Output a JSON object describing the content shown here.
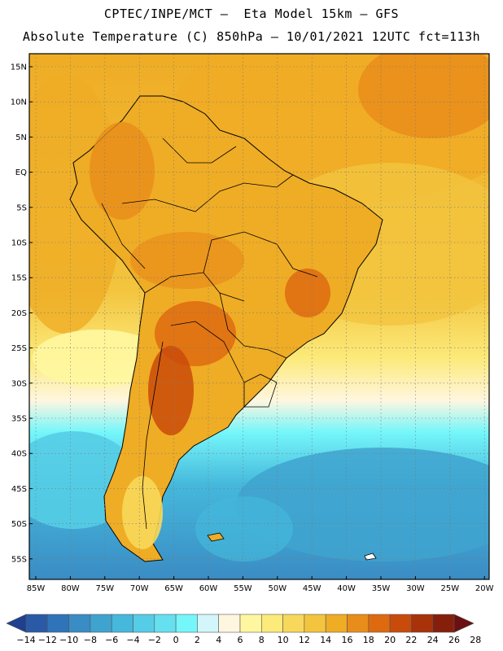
{
  "header": {
    "title_line1": "CPTEC/INPE/MCT –  Eta Model 15km – GFS",
    "title_line2": "Absolute Temperature (C) 850hPa – 10/01/2021 12UTC fct=113h"
  },
  "map": {
    "lat_ticks": [
      "15N",
      "10N",
      "5N",
      "EQ",
      "5S",
      "10S",
      "15S",
      "20S",
      "25S",
      "30S",
      "35S",
      "40S",
      "45S",
      "50S",
      "55S"
    ],
    "lon_ticks": [
      "85W",
      "80W",
      "75W",
      "70W",
      "65W",
      "60W",
      "55W",
      "50W",
      "45W",
      "40W",
      "35W",
      "30W",
      "25W",
      "20W"
    ]
  },
  "colorbar": {
    "colors": [
      "#1f3f8f",
      "#2a5aa6",
      "#2f74b8",
      "#3a8cc4",
      "#3fa3cf",
      "#45b8dc",
      "#55cde6",
      "#66e0ee",
      "#75f6fa",
      "#d3f6fa",
      "#fff6e0",
      "#fff7a0",
      "#fcea7a",
      "#f8d85a",
      "#f3c43e",
      "#efac25",
      "#e98d1a",
      "#de6a10",
      "#c94b0b",
      "#a8320a",
      "#851f0c",
      "#6a0f12"
    ],
    "labels": [
      "−14",
      "−12",
      "−10",
      "−8",
      "−6",
      "−4",
      "−2",
      "0",
      "2",
      "4",
      "6",
      "8",
      "10",
      "12",
      "14",
      "16",
      "18",
      "20",
      "22",
      "24",
      "26",
      "28"
    ]
  }
}
